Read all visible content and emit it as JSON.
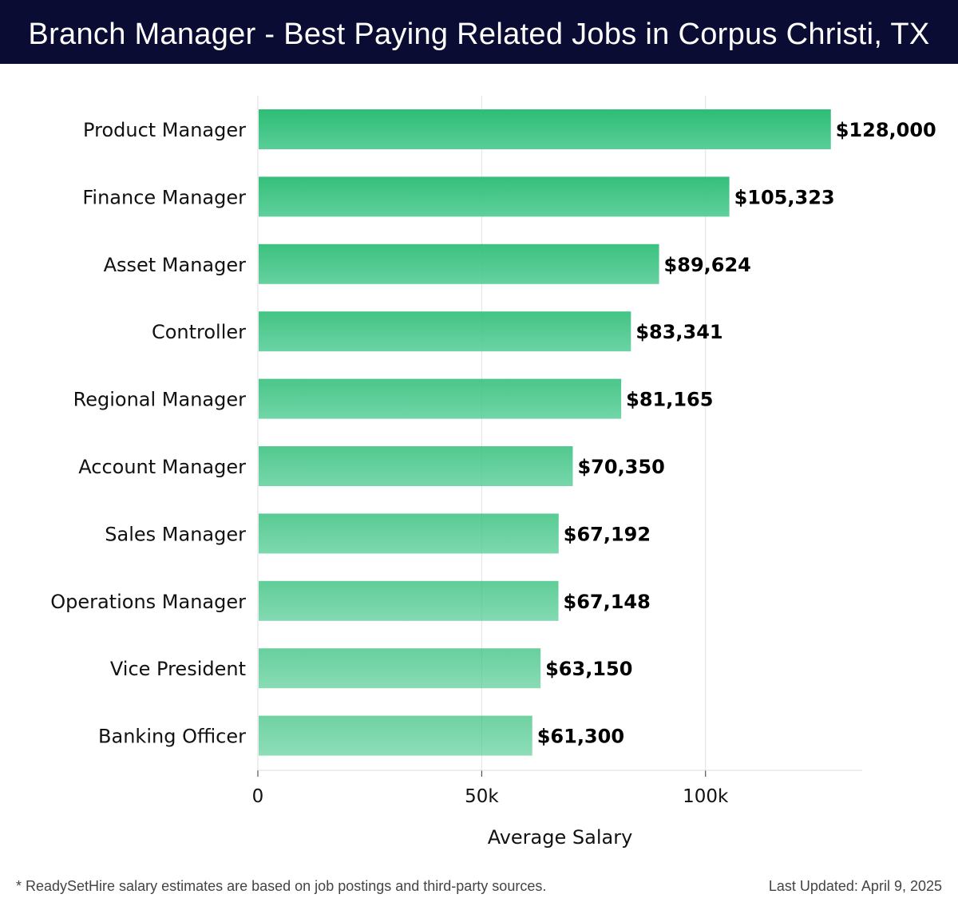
{
  "header": {
    "title": "Branch Manager - Best Paying Related Jobs in Corpus Christi, TX"
  },
  "footer": {
    "note": "* ReadySetHire salary estimates are based on job postings and third-party sources.",
    "updated": "Last Updated: April 9, 2025"
  },
  "colors": {
    "header_bg": "#0b0c33",
    "bar_top": "#2dbd76",
    "bar_bottom": "#5ace99",
    "grid": "#e2e2e2"
  },
  "chart_data": {
    "type": "bar",
    "orientation": "horizontal",
    "title": "Branch Manager - Best Paying Related Jobs in Corpus Christi, TX",
    "xlabel": "Average Salary",
    "ylabel": "",
    "xlim": [
      0,
      135000
    ],
    "xticks": [
      0,
      50000,
      100000
    ],
    "xtick_labels": [
      "0",
      "50k",
      "100k"
    ],
    "grid": true,
    "categories": [
      "Product Manager",
      "Finance Manager",
      "Asset Manager",
      "Controller",
      "Regional Manager",
      "Account Manager",
      "Sales Manager",
      "Operations Manager",
      "Vice President",
      "Banking Officer"
    ],
    "values": [
      128000,
      105323,
      89624,
      83341,
      81165,
      70350,
      67192,
      67148,
      63150,
      61300
    ],
    "value_labels": [
      "$128,000",
      "$105,323",
      "$89,624",
      "$83,341",
      "$81,165",
      "$70,350",
      "$67,192",
      "$67,148",
      "$63,150",
      "$61,300"
    ]
  }
}
